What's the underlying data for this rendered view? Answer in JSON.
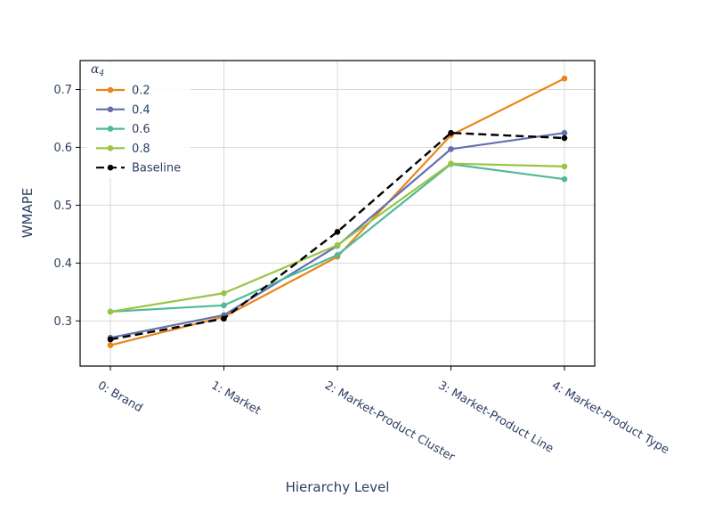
{
  "chart_data": {
    "type": "line",
    "categories": [
      "0: Brand",
      "1: Market",
      "2: Market-Product Cluster",
      "3: Market-Product Line",
      "4: Market-Product Type"
    ],
    "xlabel": "Hierarchy Level",
    "ylabel": "WMAPE",
    "ylim": [
      0.222,
      0.75
    ],
    "yticks": [
      0.3,
      0.4,
      0.5,
      0.6,
      0.7
    ],
    "ytick_labels": [
      "0.3",
      "0.4",
      "0.5",
      "0.6",
      "0.7"
    ],
    "grid": true,
    "legend": {
      "title_main": "α",
      "title_sub": "4",
      "location": "top-left"
    },
    "series": [
      {
        "name": "0.2",
        "color": "#e8861a",
        "dash": "solid",
        "values": [
          0.258,
          0.307,
          0.411,
          0.621,
          0.719
        ]
      },
      {
        "name": "0.4",
        "color": "#6370ad",
        "dash": "solid",
        "values": [
          0.271,
          0.31,
          0.43,
          0.597,
          0.625
        ]
      },
      {
        "name": "0.6",
        "color": "#4fba9a",
        "dash": "solid",
        "values": [
          0.316,
          0.327,
          0.414,
          0.571,
          0.545
        ]
      },
      {
        "name": "0.8",
        "color": "#99c443",
        "dash": "solid",
        "values": [
          0.316,
          0.348,
          0.431,
          0.572,
          0.567
        ]
      },
      {
        "name": "Baseline",
        "color": "#000000",
        "dash": "dashed",
        "values": [
          0.268,
          0.304,
          0.454,
          0.625,
          0.616
        ]
      }
    ]
  }
}
